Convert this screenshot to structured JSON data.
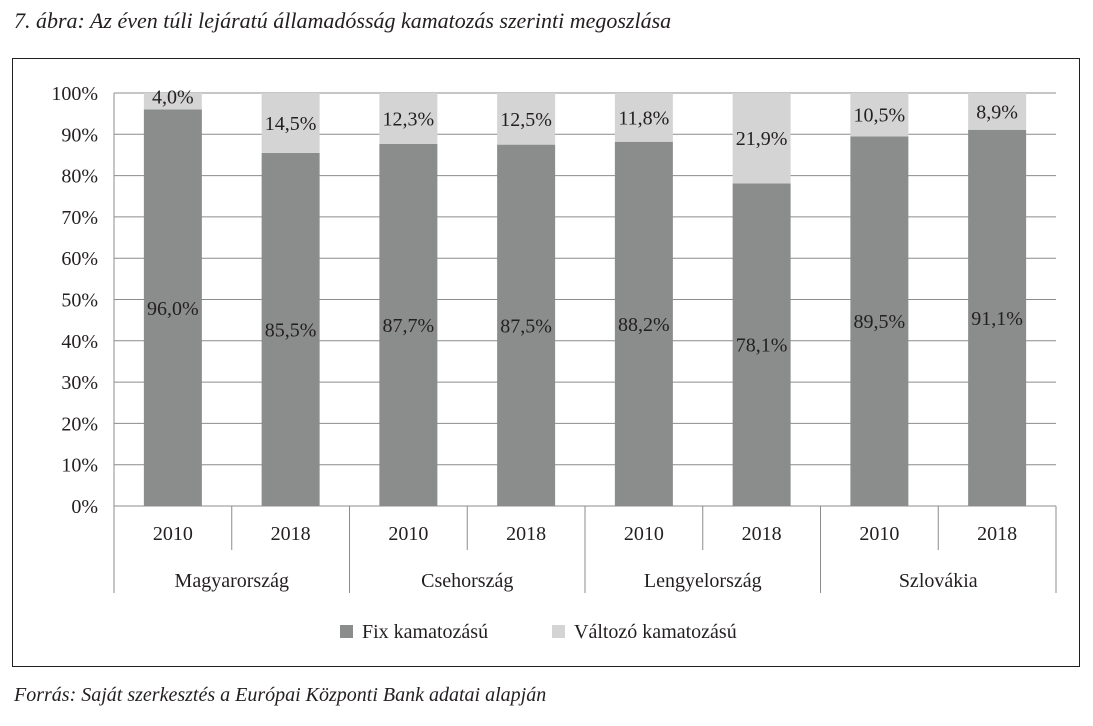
{
  "title": "7. ábra: Az éven túli lejáratú államadósság kamatozás szerinti megoszlása",
  "source": "Forrás: Saját szerkesztés a Európai Központi Bank adatai alapján",
  "chart_data": {
    "type": "bar",
    "stacked": true,
    "groups": [
      "Magyarország",
      "Csehország",
      "Lengyelország",
      "Szlovákia"
    ],
    "categories": [
      "2010",
      "2018",
      "2010",
      "2018",
      "2010",
      "2018",
      "2010",
      "2018"
    ],
    "series": [
      {
        "name": "Fix kamatozású",
        "color": "#8a8d8c",
        "values": [
          96.0,
          85.5,
          87.7,
          87.5,
          88.2,
          78.1,
          89.5,
          91.1
        ],
        "labels": [
          "96,0%",
          "85,5%",
          "87,7%",
          "87,5%",
          "88,2%",
          "78,1%",
          "89,5%",
          "91,1%"
        ]
      },
      {
        "name": "Változó kamatozású",
        "color": "#d4d4d4",
        "values": [
          4.0,
          14.5,
          12.3,
          12.5,
          11.8,
          21.9,
          10.5,
          8.9
        ],
        "labels": [
          "4,0%",
          "14,5%",
          "12,3%",
          "12,5%",
          "11,8%",
          "21,9%",
          "10,5%",
          "8,9%"
        ]
      }
    ],
    "ylim": [
      0,
      100
    ],
    "yticks": [
      "0%",
      "10%",
      "20%",
      "30%",
      "40%",
      "50%",
      "60%",
      "70%",
      "80%",
      "90%",
      "100%"
    ],
    "grid": true,
    "legend": "bottom"
  }
}
